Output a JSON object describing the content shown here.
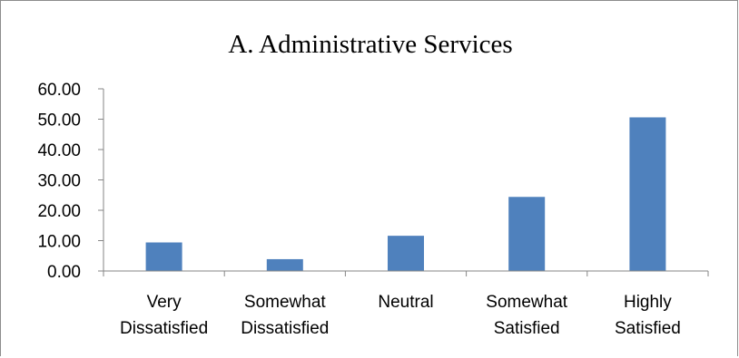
{
  "chart_data": {
    "type": "bar",
    "title": "A. Administrative Services",
    "categories": [
      [
        "Very",
        "Dissatisfied"
      ],
      [
        "Somewhat",
        "Dissatisfied"
      ],
      [
        "Neutral"
      ],
      [
        "Somewhat",
        "Satisfied"
      ],
      [
        "Highly",
        "Satisfied"
      ]
    ],
    "values": [
      9.4,
      3.9,
      11.6,
      24.4,
      50.6
    ],
    "ylim": [
      0,
      60
    ],
    "yticks": [
      "0.00",
      "10.00",
      "20.00",
      "30.00",
      "40.00",
      "50.00",
      "60.00"
    ],
    "xlabel": "",
    "ylabel": "",
    "grid": false,
    "legend": "none",
    "bar_color": "#4f81bd"
  }
}
